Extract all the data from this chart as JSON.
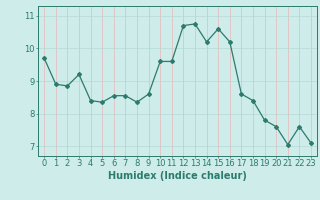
{
  "x": [
    0,
    1,
    2,
    3,
    4,
    5,
    6,
    7,
    8,
    9,
    10,
    11,
    12,
    13,
    14,
    15,
    16,
    17,
    18,
    19,
    20,
    21,
    22,
    23
  ],
  "y": [
    9.7,
    8.9,
    8.85,
    9.2,
    8.4,
    8.35,
    8.55,
    8.55,
    8.35,
    8.6,
    9.6,
    9.6,
    10.7,
    10.75,
    10.2,
    10.6,
    10.2,
    8.6,
    8.4,
    7.8,
    7.6,
    7.05,
    7.6,
    7.1
  ],
  "line_color": "#2d7b6e",
  "marker": "D",
  "marker_size": 2.0,
  "linewidth": 0.9,
  "bg_color": "#cdecea",
  "grid_color_v": "#e8b8b8",
  "grid_color_h": "#b8d8d5",
  "xlabel": "Humidex (Indice chaleur)",
  "xlim": [
    -0.5,
    23.5
  ],
  "ylim": [
    6.7,
    11.3
  ],
  "yticks": [
    7,
    8,
    9,
    10,
    11
  ],
  "xticks": [
    0,
    1,
    2,
    3,
    4,
    5,
    6,
    7,
    8,
    9,
    10,
    11,
    12,
    13,
    14,
    15,
    16,
    17,
    18,
    19,
    20,
    21,
    22,
    23
  ],
  "tick_color": "#2d7b6e",
  "label_color": "#2d7b6e",
  "font_size": 6,
  "xlabel_fontsize": 7
}
